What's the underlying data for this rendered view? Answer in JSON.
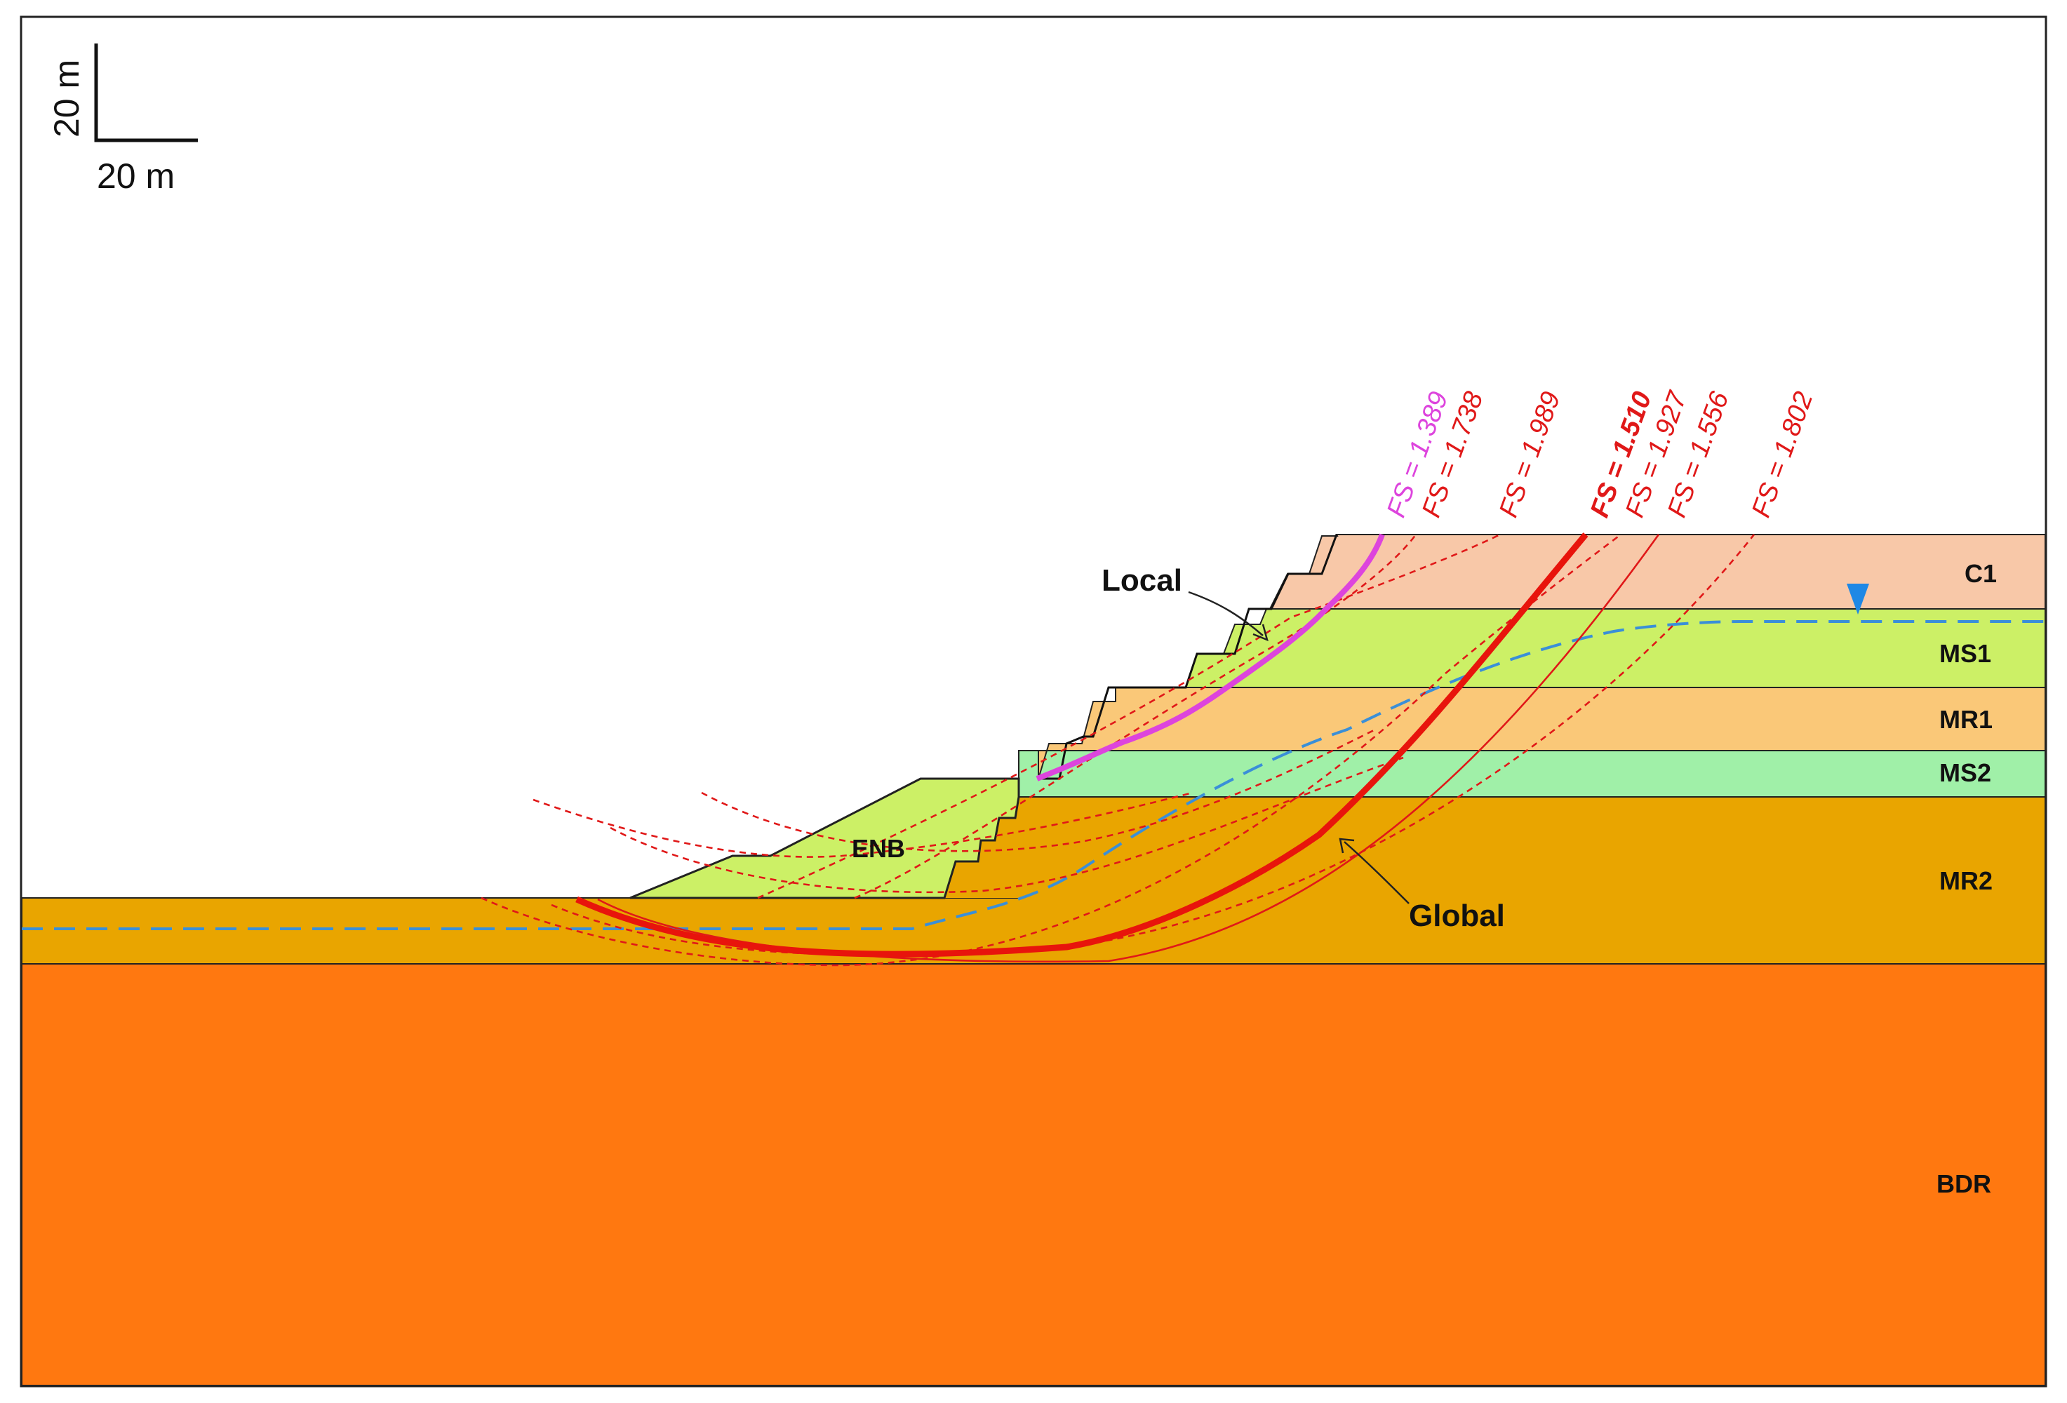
{
  "scale_bar": {
    "vertical_label": "20 m",
    "horizontal_label": "20 m"
  },
  "layers": {
    "C1": {
      "label": "C1",
      "color": "#F8C8A8"
    },
    "MS1": {
      "label": "MS1",
      "color": "#CCF066"
    },
    "MR1": {
      "label": "MR1",
      "color": "#FAC878"
    },
    "MS2": {
      "label": "MS2",
      "color": "#A0F0A8"
    },
    "MR2": {
      "label": "MR2",
      "color": "#E9A500"
    },
    "BDR": {
      "label": "BDR",
      "color": "#FF7810"
    },
    "ENB": {
      "label": "ENB",
      "color": "#CCF066"
    }
  },
  "surfaces": [
    {
      "label": "FS = 1.389",
      "color": "#DD44DD",
      "style": "local-critical"
    },
    {
      "label": "FS = 1.738",
      "color": "#E01818",
      "style": "dashed"
    },
    {
      "label": "FS = 1.989",
      "color": "#E01818",
      "style": "dashed"
    },
    {
      "label": "FS = 1.510",
      "color": "#E01818",
      "style": "global-critical"
    },
    {
      "label": "FS = 1.927",
      "color": "#E01818",
      "style": "dashed"
    },
    {
      "label": "FS = 1.556",
      "color": "#E01818",
      "style": "thin"
    },
    {
      "label": "FS = 1.802",
      "color": "#E01818",
      "style": "dashed"
    }
  ],
  "callouts": {
    "local": "Local",
    "global": "Global"
  },
  "water_table": {
    "color": "#3A8FD8",
    "marker_color": "#1E88E5"
  }
}
